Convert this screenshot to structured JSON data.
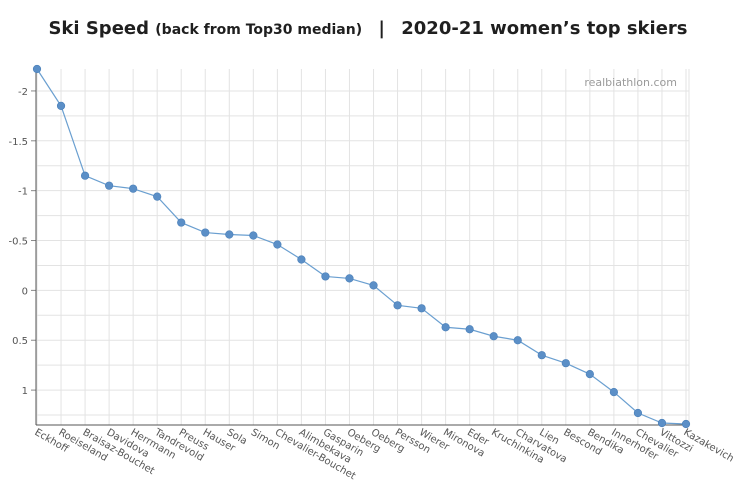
{
  "title": {
    "main": "Ski Speed",
    "sub": "(back from Top30 median)",
    "separator": "|",
    "right": "2020-21 women’s top skiers"
  },
  "watermark": "realbiathlon.com",
  "chart_data": {
    "type": "line",
    "y_inverted": true,
    "ylim": [
      -2.22,
      1.35
    ],
    "yticks": [
      -2,
      -1.5,
      -1,
      -0.5,
      0,
      0.5,
      1
    ],
    "ytick_labels": [
      "-2",
      "-1.5",
      "-1",
      "-0.5",
      "0",
      "0.5",
      "1"
    ],
    "grid": true,
    "colors": {
      "line": "#6a9fd0",
      "marker": "#5b8fc7",
      "grid": "#e3e3e3"
    },
    "categories": [
      "Eckhoff",
      "Roeiseland",
      "Braisaz-Bouchet",
      "Davidova",
      "Herrmann",
      "Tandrevold",
      "Preuss",
      "Hauser",
      "Sola",
      "Simon",
      "Chevalier-Bouchet",
      "Alimbekava",
      "Gasparin",
      "Oeberg",
      "Oeberg",
      "Persson",
      "Wierer",
      "Mironova",
      "Eder",
      "Kruchinkina",
      "Charvatova",
      "Lien",
      "Bescond",
      "Bendika",
      "Innerhofer",
      "Chevalier",
      "Vittozzi",
      "Kazakevich"
    ],
    "values": [
      -2.22,
      -1.85,
      -1.15,
      -1.05,
      -1.02,
      -0.94,
      -0.68,
      -0.58,
      -0.56,
      -0.55,
      -0.46,
      -0.31,
      -0.14,
      -0.12,
      -0.05,
      0.15,
      0.18,
      0.37,
      0.39,
      0.46,
      0.5,
      0.65,
      0.73,
      0.84,
      1.02,
      1.23,
      1.33,
      1.34
    ]
  }
}
